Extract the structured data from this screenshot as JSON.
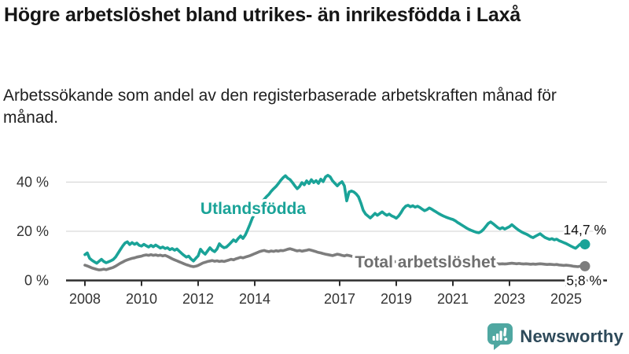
{
  "header": {
    "title": "Högre arbetslöshet bland utrikes- än inrikesfödda i Laxå",
    "subtitle": "Arbetssökande som andel av den registerbaserade arbetskraften månad för månad."
  },
  "chart_data": {
    "type": "line",
    "unit": "%",
    "x_range": {
      "start": "2008-01",
      "end": "2025-09"
    },
    "x_ticks": [
      2008,
      2010,
      2012,
      2014,
      2017,
      2019,
      2021,
      2023,
      2025
    ],
    "y_ticks": [
      {
        "value": 0,
        "label": "0 %"
      },
      {
        "value": 20,
        "label": "20 %"
      },
      {
        "value": 40,
        "label": "40 %"
      }
    ],
    "ylim": [
      0,
      45
    ],
    "grid": "horizontal",
    "legend_position": "inline-labels",
    "series": [
      {
        "name": "Total arbetslöshet",
        "color": "#7d7d7d",
        "label_color": "#6f6f6f",
        "end_label": "5,8 %",
        "end_value": 5.8,
        "values": [
          6.2,
          5.9,
          5.5,
          5.1,
          4.8,
          4.5,
          4.3,
          4.4,
          4.6,
          4.4,
          4.7,
          5,
          5.3,
          5.8,
          6.4,
          7,
          7.5,
          8,
          8.4,
          8.7,
          9,
          9.2,
          9.5,
          9.7,
          9.9,
          10.2,
          10.4,
          10.2,
          10.5,
          10.2,
          10.4,
          10.1,
          10.3,
          10,
          10.2,
          9.8,
          9.3,
          8.8,
          8.4,
          8,
          7.6,
          7.2,
          6.8,
          6.4,
          6.1,
          5.8,
          5.6,
          5.8,
          6.1,
          6.6,
          7.1,
          7.4,
          7.7,
          7.9,
          8.1,
          7.8,
          8,
          7.7,
          7.9,
          7.7,
          8,
          8.3,
          8.6,
          8.4,
          8.8,
          9.1,
          9.4,
          9.2,
          9.5,
          9.8,
          10.1,
          10.5,
          10.9,
          11.3,
          11.7,
          12,
          12.2,
          11.9,
          11.7,
          12,
          11.8,
          12.1,
          11.9,
          12.2,
          12.1,
          12.4,
          12.7,
          12.9,
          12.6,
          12.3,
          12,
          12.2,
          11.9,
          12.1,
          12.3,
          12.5,
          12.3,
          12,
          11.7,
          11.4,
          11.2,
          10.9,
          10.7,
          10.5,
          10.3,
          10.1,
          10.4,
          10.7,
          10.5,
          10.2,
          10,
          10.3,
          10.1,
          9.9,
          9.7,
          9.5,
          9.3,
          9.1,
          9,
          8.9,
          8.8,
          8.7,
          8.6,
          8.5,
          8.4,
          8.3,
          8.2,
          8.1,
          8,
          7.9,
          7.8,
          7.7,
          7.6,
          7.7,
          7.8,
          7.9,
          8,
          8.1,
          8,
          7.9,
          7.8,
          7.7,
          7.6,
          7.5,
          7.6,
          7.8,
          8.1,
          8.5,
          8.7,
          8.6,
          8.4,
          8.2,
          8,
          7.8,
          7.7,
          7.6,
          7.5,
          7.4,
          7.3,
          7.2,
          7.1,
          7,
          6.9,
          7,
          6.9,
          6.8,
          6.9,
          6.8,
          6.9,
          7,
          7.1,
          7,
          6.9,
          6.8,
          6.9,
          6.8,
          6.7,
          6.8,
          6.7,
          6.8,
          6.9,
          7,
          6.9,
          6.8,
          6.9,
          6.8,
          6.7,
          6.8,
          6.7,
          6.6,
          6.7,
          6.6,
          6.7,
          6.8,
          6.7,
          6.6,
          6.5,
          6.6,
          6.5,
          6.4,
          6.5,
          6.3,
          6.2,
          6.1,
          6.2,
          6.1,
          6,
          5.8,
          5.7,
          5.6,
          5.8,
          5.7,
          5.8
        ]
      },
      {
        "name": "Utlandsfödda",
        "color": "#1aa398",
        "label_color": "#1aa398",
        "end_label": "14,7 %",
        "end_value": 14.7,
        "values": [
          10.5,
          11.2,
          9,
          8.2,
          7.6,
          7,
          7.8,
          8.6,
          7.7,
          7.2,
          7.6,
          8,
          8.5,
          9.5,
          11,
          12.5,
          14,
          15.2,
          15.7,
          14.6,
          15.4,
          14.7,
          15.2,
          14.3,
          14,
          14.7,
          14.1,
          13.6,
          14.3,
          13.7,
          14.4,
          13.8,
          13.2,
          13.6,
          13,
          13.3,
          12.5,
          13,
          12.3,
          12.8,
          11.9,
          11,
          10.2,
          9.5,
          9.9,
          8.7,
          7.9,
          9,
          10,
          12.7,
          11.5,
          10.7,
          12,
          13.3,
          12.3,
          11.7,
          12.8,
          14.9,
          13.9,
          13.3,
          13.6,
          14.5,
          15.5,
          16.5,
          15.8,
          17.1,
          18.1,
          17.1,
          18.5,
          20.6,
          22.9,
          25.4,
          27,
          28.5,
          30.2,
          31.8,
          33,
          34.1,
          35,
          36.3,
          37.3,
          38.2,
          39.4,
          40.7,
          41.8,
          42.6,
          41.6,
          41,
          39.8,
          38.5,
          37.3,
          38.2,
          39.8,
          38.9,
          40.5,
          39.4,
          41,
          39.8,
          40.6,
          39.5,
          41.2,
          40.2,
          42.1,
          42.8,
          42.1,
          40.5,
          39.5,
          38.5,
          39.5,
          40.2,
          38.5,
          32.4,
          36,
          36.4,
          36,
          35.2,
          34,
          31.5,
          28.5,
          27,
          26.2,
          25.4,
          26.3,
          27.3,
          26.5,
          27.2,
          27.9,
          27.1,
          26.5,
          27,
          26.3,
          25.9,
          25.3,
          26.2,
          27.6,
          29.2,
          30.2,
          30.6,
          30,
          30.4,
          29.8,
          30.2,
          29.7,
          29,
          28.4,
          28.8,
          29.5,
          29,
          28.4,
          27.8,
          27.2,
          26.7,
          26.2,
          25.8,
          25.4,
          25.1,
          24.8,
          24.3,
          23.6,
          23,
          22.4,
          21.8,
          21.2,
          20.7,
          20.3,
          19.9,
          19.6,
          19.4,
          19.9,
          20.8,
          22,
          23.2,
          23.8,
          23.1,
          22.3,
          21.5,
          21,
          21.5,
          20.9,
          21.4,
          21.9,
          22.7,
          21.9,
          21.1,
          20.4,
          19.8,
          19.3,
          18.9,
          18.4,
          17.8,
          17.4,
          18,
          18.5,
          19,
          18.2,
          17.5,
          17.1,
          16.7,
          17,
          16.5,
          16.8,
          16.2,
          15.8,
          15.4,
          15,
          14.5,
          14,
          13.5,
          13.1,
          13.9,
          14.8,
          14.1,
          14.7
        ]
      }
    ]
  },
  "branding": {
    "name": "Newsworthy",
    "icon": "newsworthy-bubble-chart-icon",
    "icon_color": "#4fa7a1",
    "text_color": "#2e4a5a"
  }
}
